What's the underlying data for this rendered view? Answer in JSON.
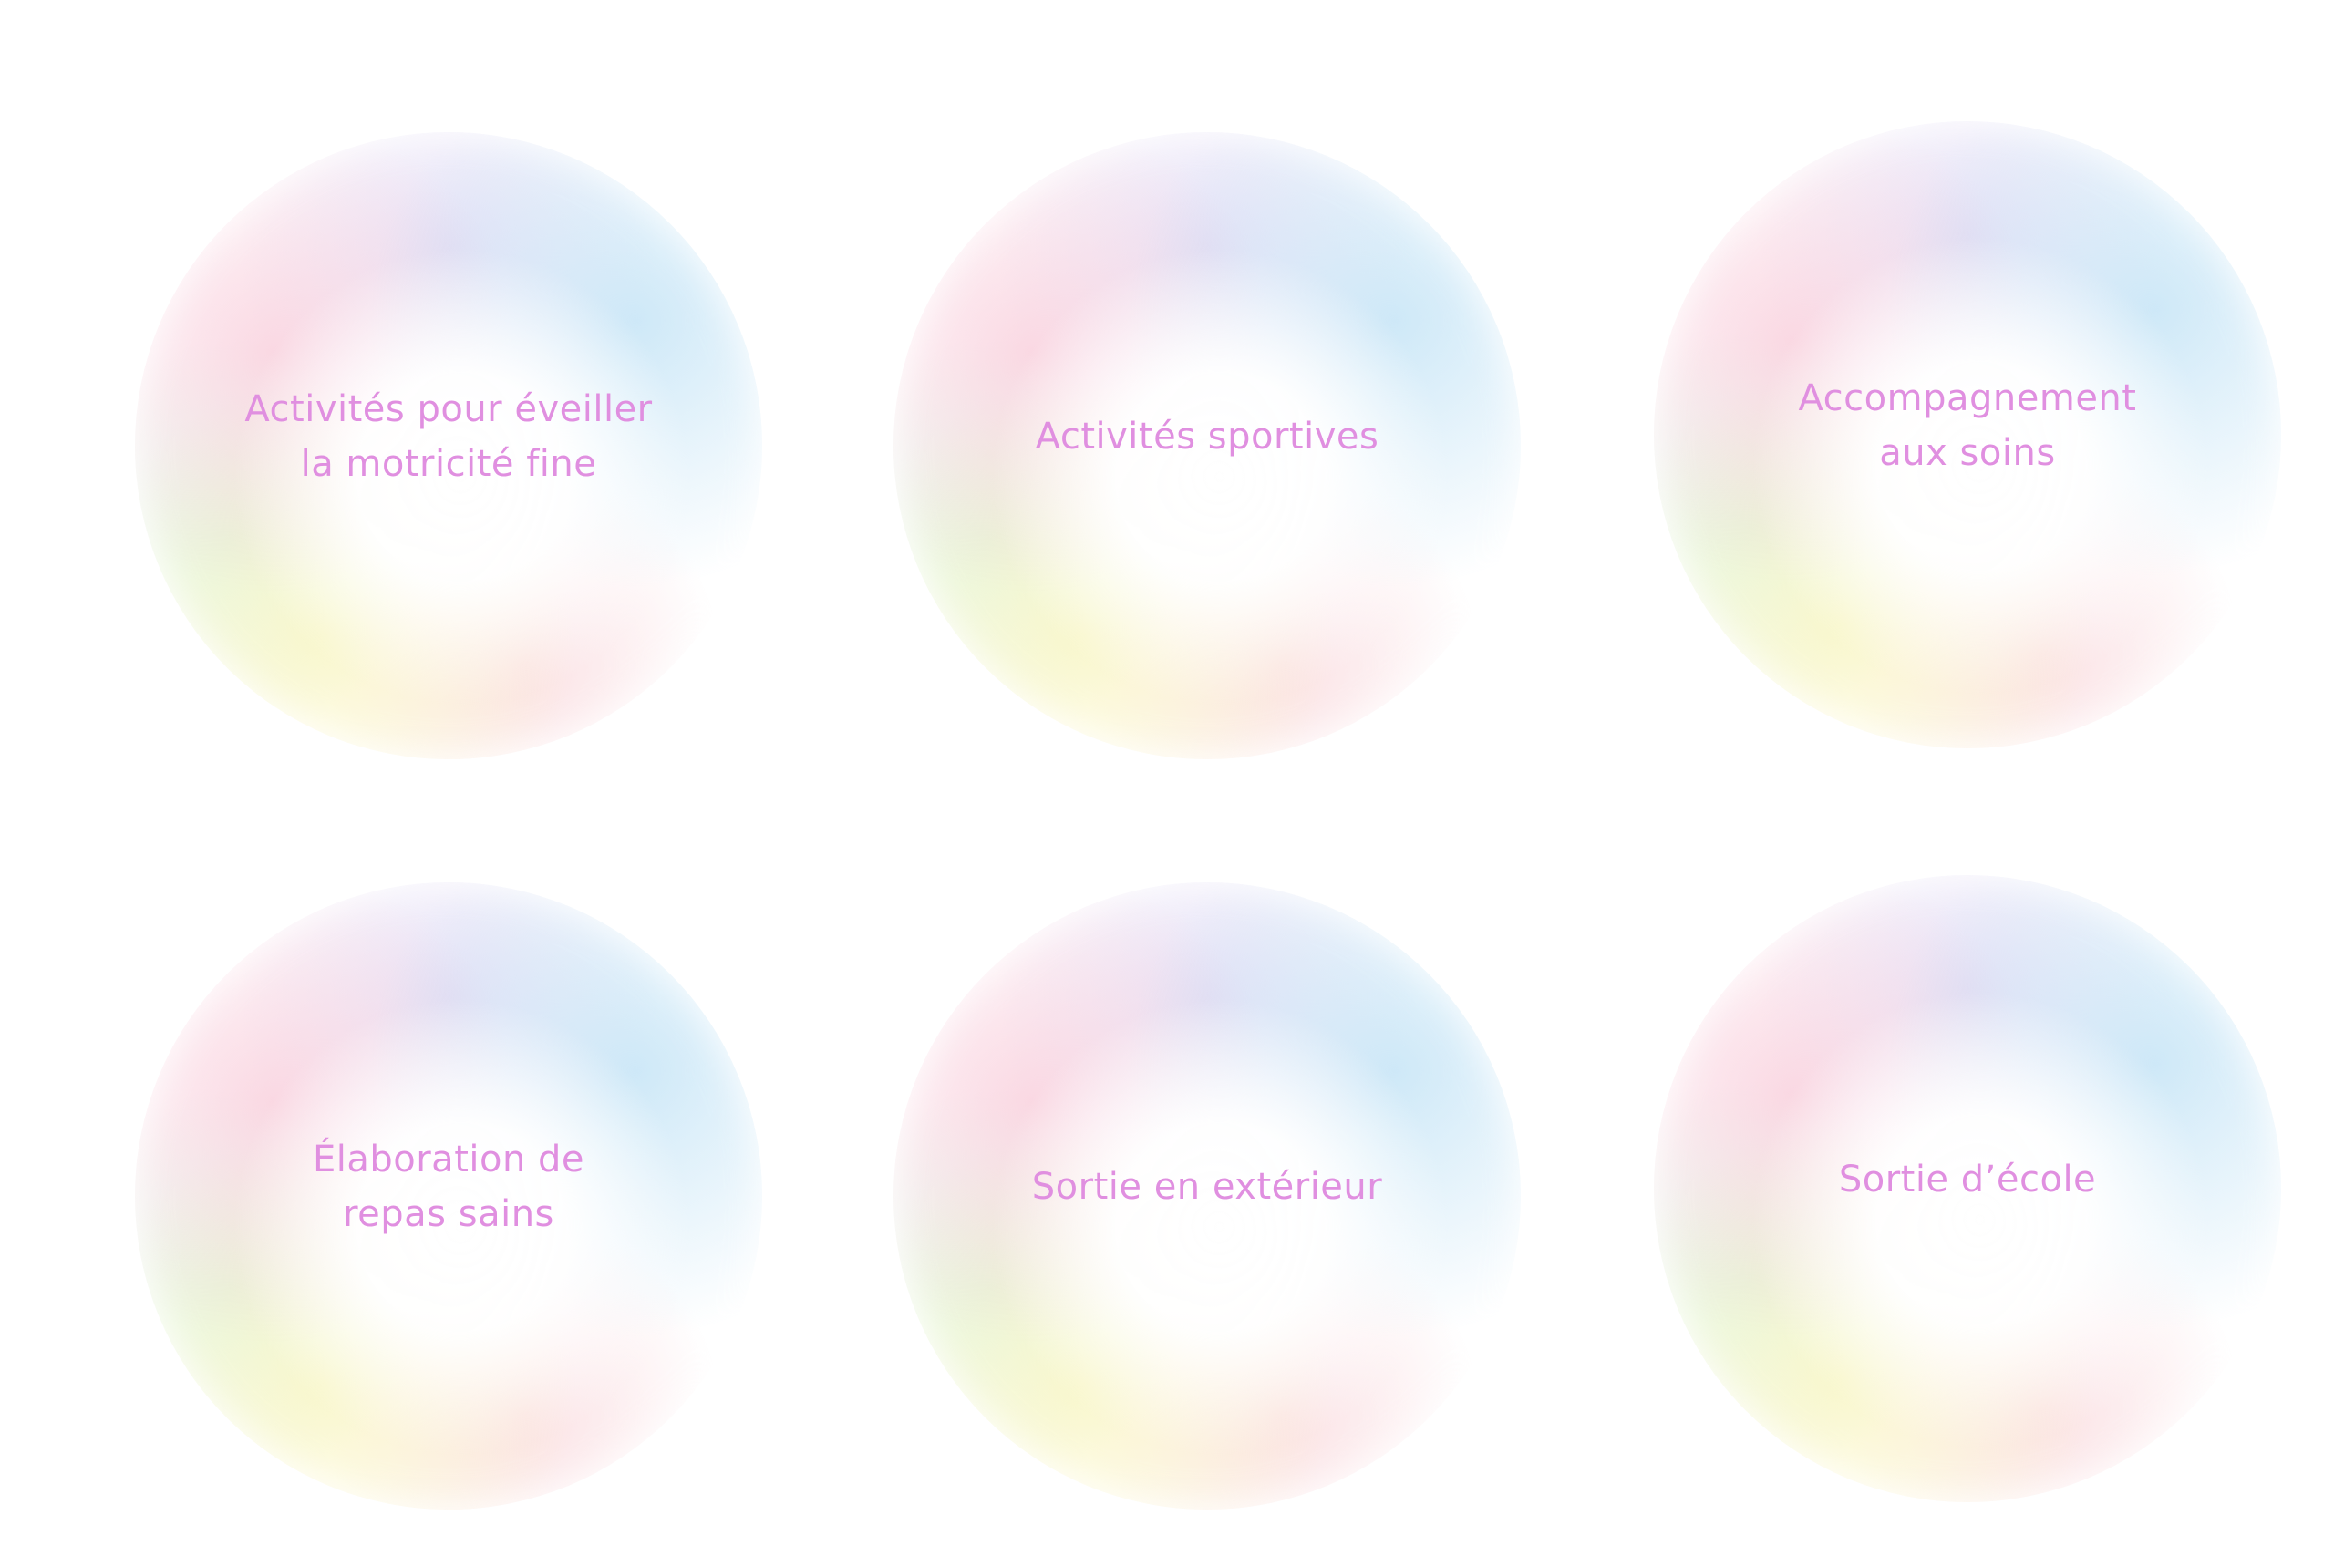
{
  "bubbles": [
    {
      "label": "Activités pour éveiller\nla motricité fine"
    },
    {
      "label": "Activités sportives"
    },
    {
      "label": "Accompagnement\naux soins"
    },
    {
      "label": "Élaboration de\nrepas sains"
    },
    {
      "label": "Sortie en extérieur"
    },
    {
      "label": "Sortie d’école"
    }
  ],
  "colors": {
    "text": "#e08fe0",
    "background": "#ffffff"
  }
}
